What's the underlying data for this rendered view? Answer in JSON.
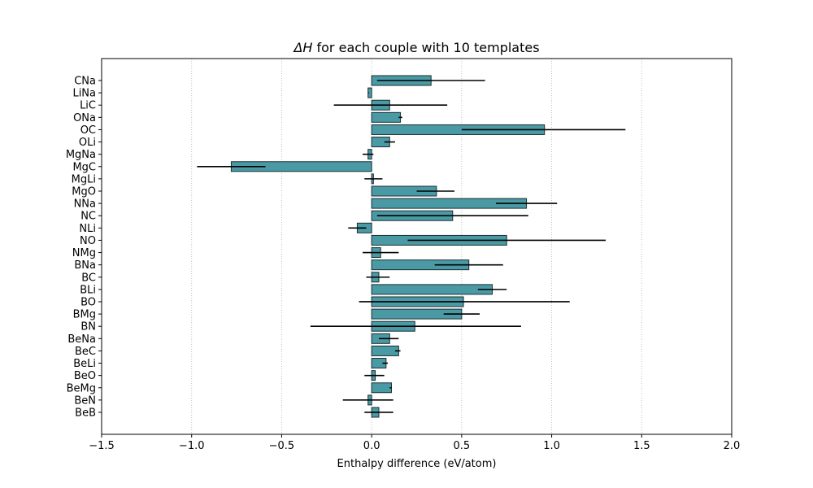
{
  "chart_data": {
    "type": "bar",
    "orientation": "horizontal",
    "title_prefix": "ΔH",
    "title_rest": " for each couple with 10 templates",
    "xlabel": "Enthalpy difference (eV/atom)",
    "ylabel": "",
    "xlim": [
      -1.5,
      2.0
    ],
    "xticks": [
      -1.5,
      -1.0,
      -0.5,
      0.0,
      0.5,
      1.0,
      1.5,
      2.0
    ],
    "xtick_labels": [
      "−1.5",
      "−1.0",
      "−0.5",
      "0.0",
      "0.5",
      "1.0",
      "1.5",
      "2.0"
    ],
    "grid": "vertical dotted",
    "bar_color": "#4a9aa5",
    "bar_edge_color": "#1a2e30",
    "error_bar_color": "#000000",
    "categories": [
      "CNa",
      "LiNa",
      "LiC",
      "ONa",
      "OC",
      "OLi",
      "MgNa",
      "MgC",
      "MgLi",
      "MgO",
      "NNa",
      "NC",
      "NLi",
      "NO",
      "NMg",
      "BNa",
      "BC",
      "BLi",
      "BO",
      "BMg",
      "BN",
      "BeNa",
      "BeC",
      "BeLi",
      "BeO",
      "BeMg",
      "BeN",
      "BeB"
    ],
    "values": [
      0.33,
      -0.02,
      0.1,
      0.16,
      0.96,
      0.1,
      -0.02,
      -0.78,
      0.01,
      0.36,
      0.86,
      0.45,
      -0.08,
      0.75,
      0.05,
      0.54,
      0.04,
      0.67,
      0.51,
      0.5,
      0.24,
      0.1,
      0.15,
      0.08,
      0.02,
      0.11,
      -0.02,
      0.04
    ],
    "error_low": [
      0.03,
      -0.02,
      -0.21,
      0.15,
      0.5,
      0.07,
      -0.05,
      -0.97,
      -0.04,
      0.25,
      0.69,
      0.03,
      -0.13,
      0.2,
      -0.05,
      0.35,
      -0.03,
      0.59,
      -0.07,
      0.4,
      -0.34,
      0.04,
      0.13,
      0.06,
      -0.04,
      0.1,
      -0.16,
      -0.04
    ],
    "error_high": [
      0.63,
      -0.02,
      0.42,
      0.17,
      1.41,
      0.13,
      0.01,
      -0.59,
      0.06,
      0.46,
      1.03,
      0.87,
      -0.03,
      1.3,
      0.15,
      0.73,
      0.1,
      0.75,
      1.1,
      0.6,
      0.83,
      0.15,
      0.16,
      0.09,
      0.07,
      0.11,
      0.12,
      0.12
    ]
  }
}
